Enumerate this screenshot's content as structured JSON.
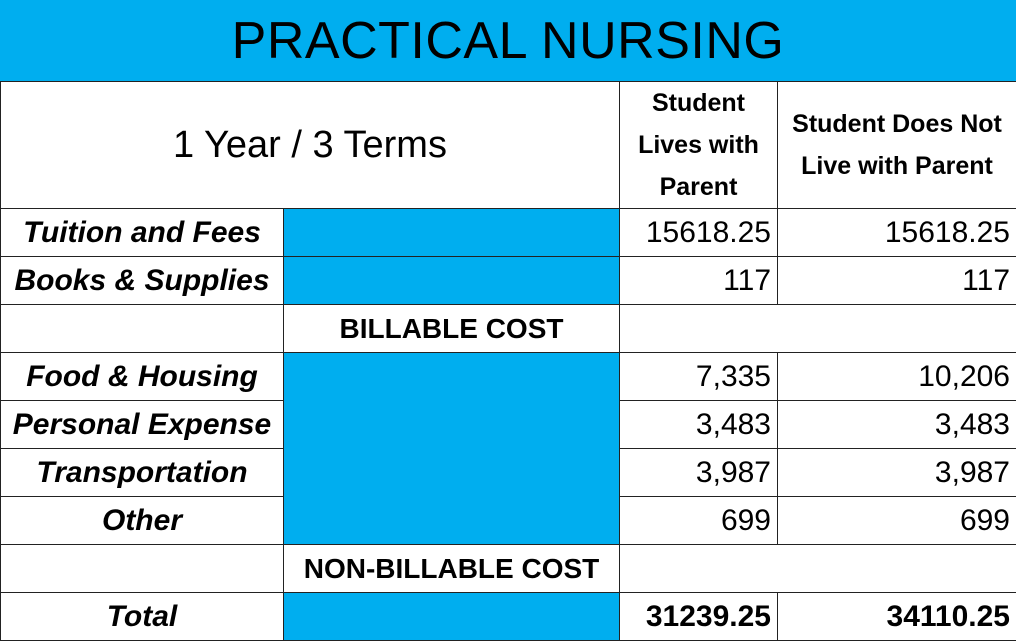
{
  "title": "PRACTICAL NURSING",
  "header": {
    "program_length": "1 Year / 3 Terms",
    "col1": "Student Lives with Parent",
    "col2": "Student Does Not Live with Parent"
  },
  "billable_rows": [
    {
      "label": "Tuition and Fees",
      "with_parent": "15618.25",
      "without_parent": "15618.25"
    },
    {
      "label": "Books & Supplies",
      "with_parent": "117",
      "without_parent": "117"
    }
  ],
  "billable_label": "BILLABLE COST",
  "nonbillable_rows": [
    {
      "label": "Food & Housing",
      "with_parent": "7,335",
      "without_parent": "10,206"
    },
    {
      "label": "Personal Expense",
      "with_parent": "3,483",
      "without_parent": "3,483"
    },
    {
      "label": "Transportation",
      "with_parent": "3,987",
      "without_parent": "3,987"
    },
    {
      "label": "Other",
      "with_parent": "699",
      "without_parent": "699"
    }
  ],
  "nonbillable_label": "NON-BILLABLE COST",
  "total": {
    "label": "Total",
    "with_parent": "31239.25",
    "without_parent": "34110.25"
  },
  "colors": {
    "accent": "#00aeef"
  }
}
